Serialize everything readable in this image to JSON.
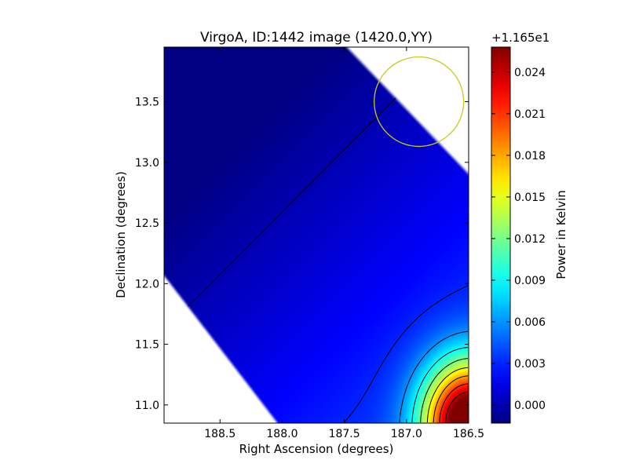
{
  "chart_data": {
    "type": "heatmap",
    "title": "VirgoA, ID:1442 image (1420.0,YY)",
    "xlabel": "Right Ascension (degrees)",
    "ylabel": "Declination (degrees)",
    "xlim": [
      188.95,
      186.5
    ],
    "ylim": [
      10.85,
      13.95
    ],
    "x_ticks": [
      {
        "value": 188.5,
        "label": "188.5"
      },
      {
        "value": 188.0,
        "label": "188.0"
      },
      {
        "value": 187.5,
        "label": "187.5"
      },
      {
        "value": 187.0,
        "label": "187.0"
      },
      {
        "value": 186.5,
        "label": "186.5"
      }
    ],
    "y_ticks": [
      {
        "value": 11.0,
        "label": "11.0"
      },
      {
        "value": 11.5,
        "label": "11.5"
      },
      {
        "value": 12.0,
        "label": "12.0"
      },
      {
        "value": 12.5,
        "label": "12.5"
      },
      {
        "value": 13.0,
        "label": "13.0"
      },
      {
        "value": 13.5,
        "label": "13.5"
      }
    ],
    "colorbar": {
      "label": "Power in Kelvin",
      "offset_text": "+1.165e1",
      "colormap": "jet",
      "range": [
        -0.0013,
        0.0258
      ],
      "ticks": [
        {
          "value": 0.0,
          "label": "0.000"
        },
        {
          "value": 0.003,
          "label": "0.003"
        },
        {
          "value": 0.006,
          "label": "0.006"
        },
        {
          "value": 0.009,
          "label": "0.009"
        },
        {
          "value": 0.012,
          "label": "0.012"
        },
        {
          "value": 0.015,
          "label": "0.015"
        },
        {
          "value": 0.018,
          "label": "0.018"
        },
        {
          "value": 0.021,
          "label": "0.021"
        },
        {
          "value": 0.024,
          "label": "0.024"
        }
      ]
    },
    "contour_levels": [
      0.0,
      0.003,
      0.006,
      0.009,
      0.012,
      0.015,
      0.018,
      0.021,
      0.024
    ],
    "contour_color": "#000000",
    "source_marker": {
      "type": "circle",
      "ra": 186.9,
      "dec": 13.5,
      "radius_deg": 0.36,
      "color": "#c8c820"
    }
  }
}
